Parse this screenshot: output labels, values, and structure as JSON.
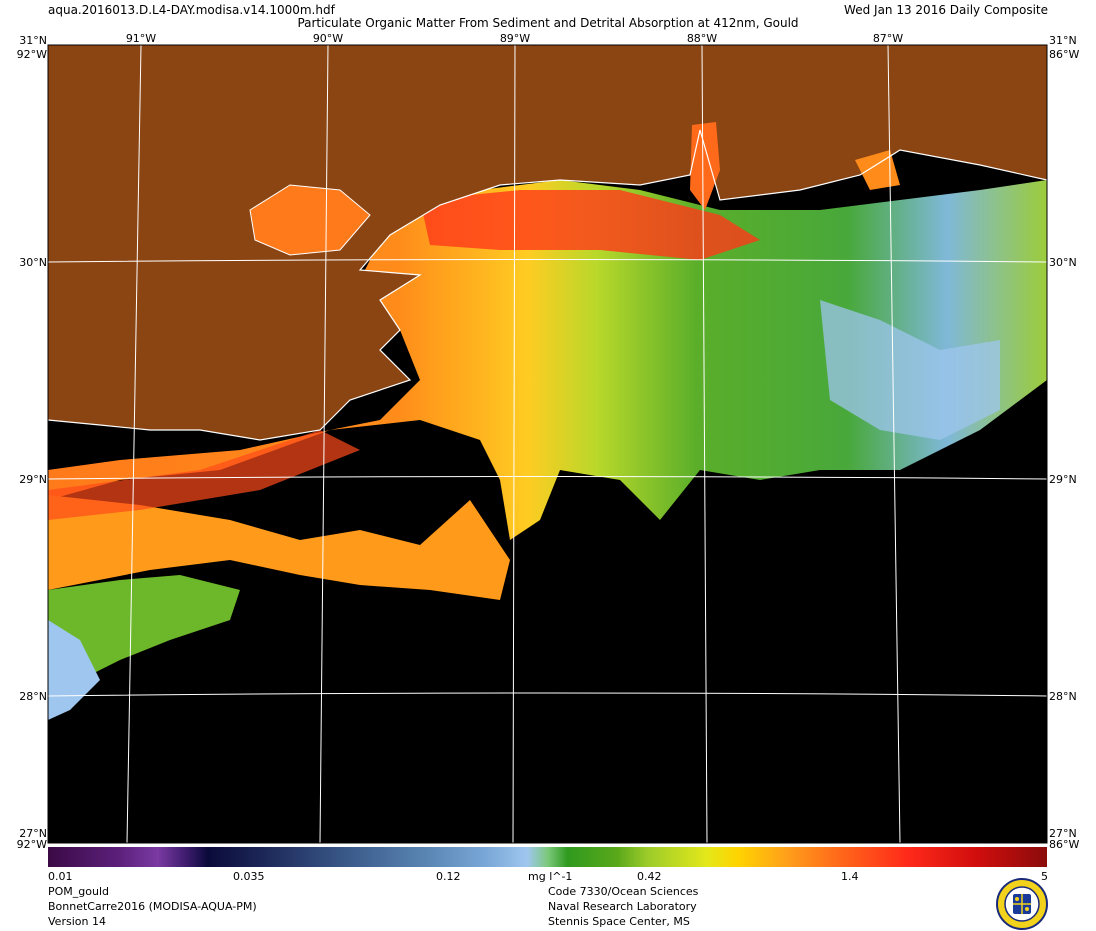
{
  "header": {
    "file_name": "aqua.2016013.D.L4-DAY.modisa.v14.1000m.hdf",
    "date_label": "Wed Jan 13 2016 Daily Composite",
    "title": "Particulate Organic Matter From Sediment and Detrital Absorption at 412nm, Gould"
  },
  "axes": {
    "top_lon_labels": [
      "91°W",
      "90°W",
      "89°W",
      "88°W",
      "87°W"
    ],
    "lat_labels_left": [
      "30°N",
      "29°N",
      "28°N"
    ],
    "lat_labels_right": [
      "30°N",
      "29°N",
      "28°N"
    ],
    "corner_top_left": "31°N",
    "corner_top_right": "31°N",
    "corner_top_left_lon": "92°W",
    "corner_top_right_lon": "86°W",
    "corner_bottom_left": "27°N",
    "corner_bottom_right": "27°N",
    "corner_bottom_left_lon": "92°W",
    "corner_bottom_right_lon": "86°W"
  },
  "colorbar": {
    "labels": [
      "0.01",
      "0.035",
      "0.12",
      "0.42",
      "1.4",
      "5"
    ],
    "unit": "mg l^-1"
  },
  "footer": {
    "left": [
      "POM_gould",
      "BonnetCarre2016 (MODISA-AQUA-PM)",
      "Version 14"
    ],
    "right": [
      "Code 7330/Ocean Sciences",
      "Naval Research Laboratory",
      "Stennis Space Center, MS"
    ]
  },
  "colors": {
    "land": "#8b4513",
    "no_data": "#000000",
    "high": "#ff4a1a",
    "mid": "#ffa010",
    "low": "#3faa2a",
    "lowest": "#9ec6ee"
  },
  "logo": "nrl-seal-icon"
}
